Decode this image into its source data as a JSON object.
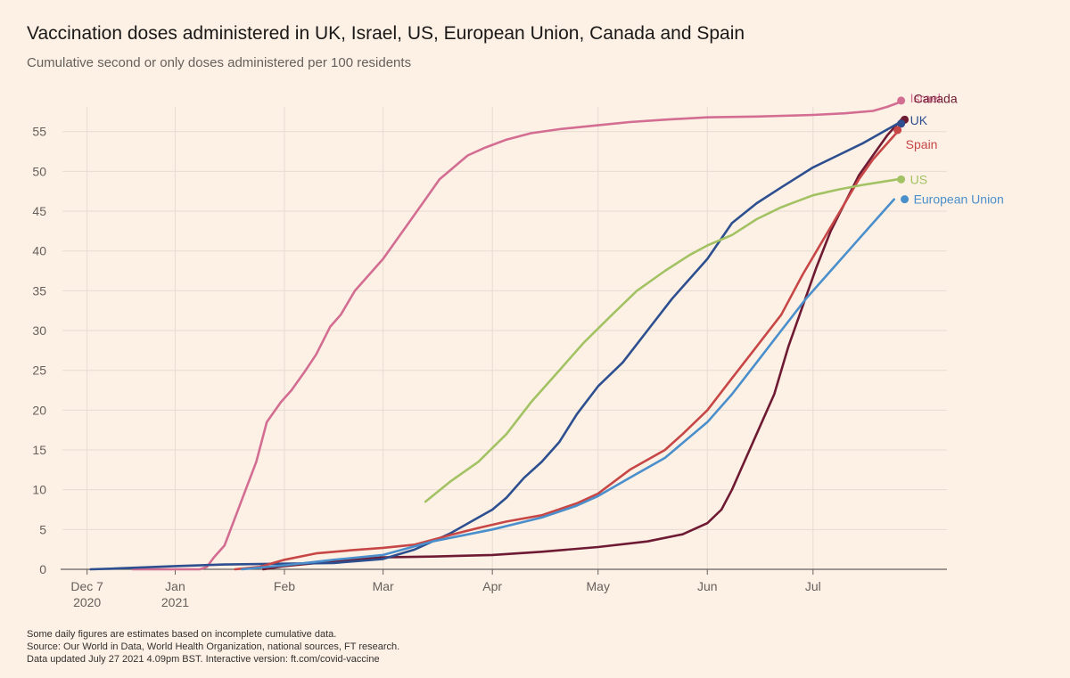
{
  "title": "Vaccination doses administered in UK, Israel, US, European Union, Canada and Spain",
  "subtitle": "Cumulative second or only doses administered per 100 residents",
  "footer": {
    "note": "Some daily figures are estimates based on incomplete cumulative data.",
    "source": "Source: Our World in Data, World Health Organization, national sources, FT research.",
    "updated": "Data updated July 27 2021 4.09pm BST. Interactive version: ft.com/covid-vaccine"
  },
  "chart_data": {
    "type": "line",
    "title": "Vaccination doses administered in UK, Israel, US, European Union, Canada and Spain",
    "ylabel": "",
    "xlabel": "",
    "ylim": [
      0,
      59
    ],
    "xlim": [
      "2020-11-30",
      "2021-08-08"
    ],
    "y_ticks": [
      0,
      5,
      10,
      15,
      20,
      25,
      30,
      35,
      40,
      45,
      50,
      55
    ],
    "x_ticks": [
      {
        "date": "2020-12-07",
        "label": "Dec 7",
        "label2": "2020"
      },
      {
        "date": "2021-01-01",
        "label": "Jan",
        "label2": "2021"
      },
      {
        "date": "2021-02-01",
        "label": "Feb",
        "label2": ""
      },
      {
        "date": "2021-03-01",
        "label": "Mar",
        "label2": ""
      },
      {
        "date": "2021-04-01",
        "label": "Apr",
        "label2": ""
      },
      {
        "date": "2021-05-01",
        "label": "May",
        "label2": ""
      },
      {
        "date": "2021-06-01",
        "label": "Jun",
        "label2": ""
      },
      {
        "date": "2021-07-01",
        "label": "Jul",
        "label2": ""
      }
    ],
    "grid": true,
    "legend": "direct labels at line ends",
    "series": [
      {
        "name": "Israel",
        "color": "#d36d92",
        "points": [
          [
            "2020-12-20",
            0
          ],
          [
            "2021-01-08",
            0
          ],
          [
            "2021-01-10",
            0.3
          ],
          [
            "2021-01-12",
            1.5
          ],
          [
            "2021-01-15",
            3
          ],
          [
            "2021-01-18",
            6.5
          ],
          [
            "2021-01-21",
            10
          ],
          [
            "2021-01-24",
            13.5
          ],
          [
            "2021-01-27",
            18.5
          ],
          [
            "2021-01-31",
            21
          ],
          [
            "2021-02-03",
            22.5
          ],
          [
            "2021-02-07",
            25
          ],
          [
            "2021-02-10",
            27
          ],
          [
            "2021-02-14",
            30.5
          ],
          [
            "2021-02-17",
            32
          ],
          [
            "2021-02-21",
            35
          ],
          [
            "2021-02-25",
            37
          ],
          [
            "2021-03-01",
            39
          ],
          [
            "2021-03-05",
            41.5
          ],
          [
            "2021-03-09",
            44
          ],
          [
            "2021-03-13",
            46.5
          ],
          [
            "2021-03-17",
            49
          ],
          [
            "2021-03-21",
            50.5
          ],
          [
            "2021-03-25",
            52
          ],
          [
            "2021-03-30",
            53
          ],
          [
            "2021-04-05",
            54
          ],
          [
            "2021-04-12",
            54.8
          ],
          [
            "2021-04-20",
            55.3
          ],
          [
            "2021-05-01",
            55.8
          ],
          [
            "2021-05-10",
            56.2
          ],
          [
            "2021-05-20",
            56.5
          ],
          [
            "2021-06-01",
            56.8
          ],
          [
            "2021-06-15",
            56.9
          ],
          [
            "2021-07-01",
            57.1
          ],
          [
            "2021-07-10",
            57.3
          ],
          [
            "2021-07-18",
            57.6
          ],
          [
            "2021-07-22",
            58.1
          ],
          [
            "2021-07-25",
            58.6
          ]
        ],
        "end_value": 58.9,
        "label": "Israel"
      },
      {
        "name": "Canada",
        "color": "#6e1a32",
        "points": [
          [
            "2021-01-26",
            0
          ],
          [
            "2021-02-01",
            0.4
          ],
          [
            "2021-02-10",
            0.8
          ],
          [
            "2021-02-20",
            1.2
          ],
          [
            "2021-03-01",
            1.5
          ],
          [
            "2021-03-15",
            1.6
          ],
          [
            "2021-04-01",
            1.8
          ],
          [
            "2021-04-15",
            2.2
          ],
          [
            "2021-05-01",
            2.8
          ],
          [
            "2021-05-15",
            3.5
          ],
          [
            "2021-05-25",
            4.4
          ],
          [
            "2021-06-01",
            5.8
          ],
          [
            "2021-06-05",
            7.5
          ],
          [
            "2021-06-08",
            10
          ],
          [
            "2021-06-12",
            14
          ],
          [
            "2021-06-16",
            18
          ],
          [
            "2021-06-20",
            22
          ],
          [
            "2021-06-24",
            28
          ],
          [
            "2021-06-28",
            33
          ],
          [
            "2021-07-02",
            38
          ],
          [
            "2021-07-06",
            42.5
          ],
          [
            "2021-07-10",
            46
          ],
          [
            "2021-07-14",
            49.5
          ],
          [
            "2021-07-18",
            52
          ],
          [
            "2021-07-22",
            54.5
          ],
          [
            "2021-07-26",
            56.5
          ]
        ],
        "end_value": 56.5,
        "label": "Canada"
      },
      {
        "name": "UK",
        "color": "#2d4f8f",
        "points": [
          [
            "2020-12-08",
            0
          ],
          [
            "2020-12-15",
            0.1
          ],
          [
            "2021-01-01",
            0.4
          ],
          [
            "2021-01-15",
            0.6
          ],
          [
            "2021-02-01",
            0.7
          ],
          [
            "2021-02-15",
            0.8
          ],
          [
            "2021-03-01",
            1.3
          ],
          [
            "2021-03-10",
            2.5
          ],
          [
            "2021-03-20",
            4.5
          ],
          [
            "2021-03-28",
            6.5
          ],
          [
            "2021-04-01",
            7.5
          ],
          [
            "2021-04-05",
            9
          ],
          [
            "2021-04-10",
            11.5
          ],
          [
            "2021-04-15",
            13.5
          ],
          [
            "2021-04-20",
            16
          ],
          [
            "2021-04-25",
            19.5
          ],
          [
            "2021-05-01",
            23
          ],
          [
            "2021-05-08",
            26
          ],
          [
            "2021-05-15",
            30
          ],
          [
            "2021-05-22",
            34
          ],
          [
            "2021-06-01",
            39
          ],
          [
            "2021-06-08",
            43.5
          ],
          [
            "2021-06-15",
            46
          ],
          [
            "2021-06-22",
            48
          ],
          [
            "2021-07-01",
            50.5
          ],
          [
            "2021-07-08",
            52
          ],
          [
            "2021-07-15",
            53.5
          ],
          [
            "2021-07-25",
            56
          ]
        ],
        "end_value": 56.0,
        "label": "UK"
      },
      {
        "name": "Spain",
        "color": "#c74747",
        "points": [
          [
            "2021-01-18",
            0
          ],
          [
            "2021-01-25",
            0.3
          ],
          [
            "2021-02-01",
            1.2
          ],
          [
            "2021-02-10",
            2
          ],
          [
            "2021-02-20",
            2.4
          ],
          [
            "2021-03-01",
            2.7
          ],
          [
            "2021-03-10",
            3.1
          ],
          [
            "2021-03-20",
            4.3
          ],
          [
            "2021-03-28",
            5.2
          ],
          [
            "2021-04-05",
            6
          ],
          [
            "2021-04-15",
            6.8
          ],
          [
            "2021-04-25",
            8.3
          ],
          [
            "2021-05-01",
            9.5
          ],
          [
            "2021-05-10",
            12.5
          ],
          [
            "2021-05-20",
            15
          ],
          [
            "2021-05-25",
            17
          ],
          [
            "2021-06-01",
            20
          ],
          [
            "2021-06-08",
            24
          ],
          [
            "2021-06-15",
            28
          ],
          [
            "2021-06-22",
            32
          ],
          [
            "2021-06-28",
            37
          ],
          [
            "2021-07-02",
            40
          ],
          [
            "2021-07-06",
            43
          ],
          [
            "2021-07-10",
            46
          ],
          [
            "2021-07-14",
            49
          ],
          [
            "2021-07-18",
            51.5
          ],
          [
            "2021-07-22",
            53.5
          ],
          [
            "2021-07-25",
            55
          ]
        ],
        "end_value": 55.2,
        "label": "Spain"
      },
      {
        "name": "US",
        "color": "#a3c263",
        "points": [
          [
            "2021-03-13",
            8.5
          ],
          [
            "2021-03-20",
            11
          ],
          [
            "2021-03-28",
            13.5
          ],
          [
            "2021-04-05",
            17
          ],
          [
            "2021-04-12",
            21
          ],
          [
            "2021-04-20",
            25
          ],
          [
            "2021-04-27",
            28.5
          ],
          [
            "2021-05-05",
            32
          ],
          [
            "2021-05-12",
            35
          ],
          [
            "2021-05-20",
            37.5
          ],
          [
            "2021-05-27",
            39.5
          ],
          [
            "2021-06-01",
            40.7
          ],
          [
            "2021-06-08",
            42
          ],
          [
            "2021-06-15",
            44
          ],
          [
            "2021-06-22",
            45.5
          ],
          [
            "2021-07-01",
            47
          ],
          [
            "2021-07-08",
            47.7
          ],
          [
            "2021-07-15",
            48.3
          ],
          [
            "2021-07-25",
            49
          ]
        ],
        "end_value": 49.0,
        "label": "US"
      },
      {
        "name": "European Union",
        "color": "#4a8fcb",
        "points": [
          [
            "2021-01-20",
            0
          ],
          [
            "2021-02-01",
            0.5
          ],
          [
            "2021-02-15",
            1.2
          ],
          [
            "2021-03-01",
            1.8
          ],
          [
            "2021-03-15",
            3.5
          ],
          [
            "2021-04-01",
            5
          ],
          [
            "2021-04-15",
            6.5
          ],
          [
            "2021-04-25",
            8
          ],
          [
            "2021-05-01",
            9.2
          ],
          [
            "2021-05-10",
            11.5
          ],
          [
            "2021-05-20",
            14
          ],
          [
            "2021-06-01",
            18.5
          ],
          [
            "2021-06-08",
            22
          ],
          [
            "2021-06-15",
            26
          ],
          [
            "2021-06-22",
            30
          ],
          [
            "2021-06-29",
            34
          ],
          [
            "2021-07-05",
            37
          ],
          [
            "2021-07-12",
            40.5
          ],
          [
            "2021-07-18",
            43.5
          ],
          [
            "2021-07-24",
            46.5
          ]
        ],
        "end_value": 46.5,
        "label": "European Union"
      }
    ]
  }
}
